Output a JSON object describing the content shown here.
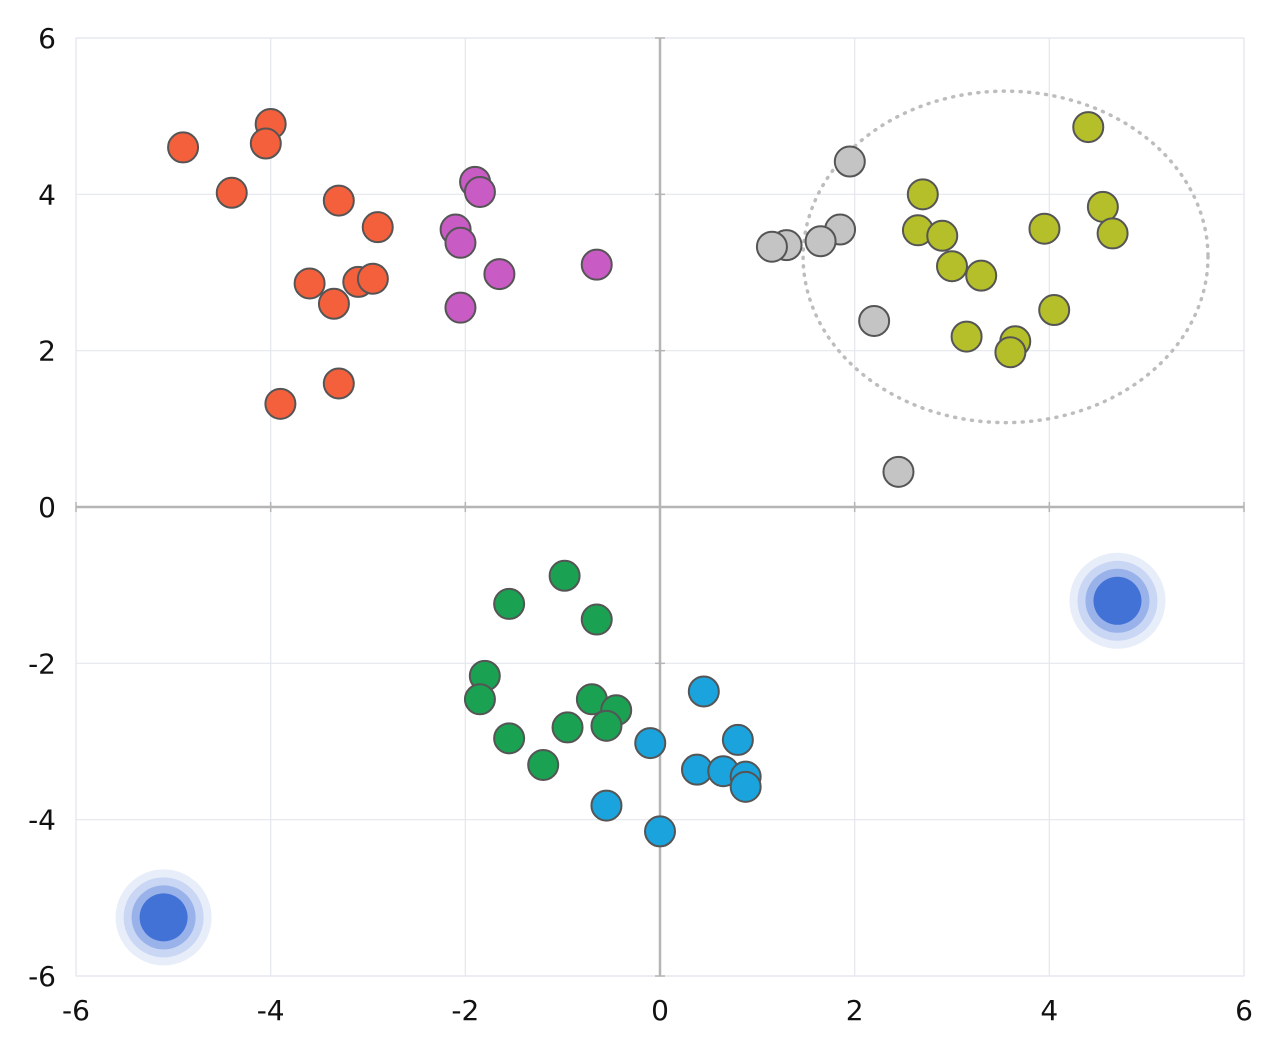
{
  "chart_data": {
    "type": "scatter",
    "title": "",
    "xlabel": "",
    "ylabel": "",
    "xlim": [
      -6,
      6
    ],
    "ylim": [
      -6,
      6
    ],
    "x_ticks": [
      "-6",
      "-4",
      "-2",
      "0",
      "2",
      "4",
      "6"
    ],
    "y_ticks": [
      "6",
      "4",
      "2",
      "0",
      "-2",
      "-4",
      "-6"
    ],
    "grid": true,
    "legend": "none",
    "series": [
      {
        "color": "#f4603c",
        "points": [
          [
            -4.9,
            4.6
          ],
          [
            -4.0,
            4.9
          ],
          [
            -4.05,
            4.65
          ],
          [
            -4.4,
            4.02
          ],
          [
            -3.3,
            3.92
          ],
          [
            -2.9,
            3.58
          ],
          [
            -3.6,
            2.86
          ],
          [
            -3.1,
            2.88
          ],
          [
            -2.95,
            2.92
          ],
          [
            -3.35,
            2.6
          ],
          [
            -3.3,
            1.58
          ],
          [
            -3.9,
            1.32
          ]
        ]
      },
      {
        "color": "#c95bc4",
        "points": [
          [
            -1.9,
            4.16
          ],
          [
            -1.85,
            4.03
          ],
          [
            -2.1,
            3.55
          ],
          [
            -2.05,
            3.38
          ],
          [
            -1.65,
            2.98
          ],
          [
            -0.65,
            3.1
          ],
          [
            -2.05,
            2.55
          ]
        ]
      },
      {
        "color": "#c4c4c4",
        "points": [
          [
            1.95,
            4.42
          ],
          [
            1.85,
            3.55
          ],
          [
            1.65,
            3.4
          ],
          [
            1.3,
            3.35
          ],
          [
            1.15,
            3.33
          ],
          [
            2.2,
            2.38
          ],
          [
            2.45,
            0.45
          ]
        ]
      },
      {
        "color": "#b5bf2a",
        "points": [
          [
            4.4,
            4.86
          ],
          [
            2.7,
            4.0
          ],
          [
            4.55,
            3.84
          ],
          [
            2.65,
            3.54
          ],
          [
            2.9,
            3.47
          ],
          [
            3.95,
            3.56
          ],
          [
            4.65,
            3.5
          ],
          [
            3.0,
            3.08
          ],
          [
            3.3,
            2.96
          ],
          [
            4.05,
            2.52
          ],
          [
            3.15,
            2.18
          ],
          [
            3.65,
            2.12
          ],
          [
            3.6,
            1.98
          ]
        ]
      },
      {
        "color": "#1aa152",
        "points": [
          [
            -0.98,
            -0.88
          ],
          [
            -1.55,
            -1.24
          ],
          [
            -0.65,
            -1.44
          ],
          [
            -1.8,
            -2.16
          ],
          [
            -1.85,
            -2.46
          ],
          [
            -0.7,
            -2.46
          ],
          [
            -0.45,
            -2.6
          ],
          [
            -0.95,
            -2.82
          ],
          [
            -0.55,
            -2.8
          ],
          [
            -1.55,
            -2.96
          ],
          [
            -1.2,
            -3.3
          ]
        ]
      },
      {
        "color": "#1aa3dc",
        "points": [
          [
            0.45,
            -2.36
          ],
          [
            0.8,
            -2.98
          ],
          [
            -0.1,
            -3.02
          ],
          [
            0.38,
            -3.36
          ],
          [
            0.65,
            -3.38
          ],
          [
            0.88,
            -3.45
          ],
          [
            0.88,
            -3.58
          ],
          [
            -0.55,
            -3.82
          ],
          [
            0.0,
            -4.15
          ]
        ]
      }
    ],
    "centroids": {
      "color": "#3e6fd6",
      "points": [
        [
          4.7,
          -1.2
        ],
        [
          -5.1,
          -5.25
        ]
      ]
    },
    "highlight_circle": {
      "center": [
        3.55,
        3.2
      ],
      "rx": 2.08,
      "ry": 2.12
    }
  }
}
